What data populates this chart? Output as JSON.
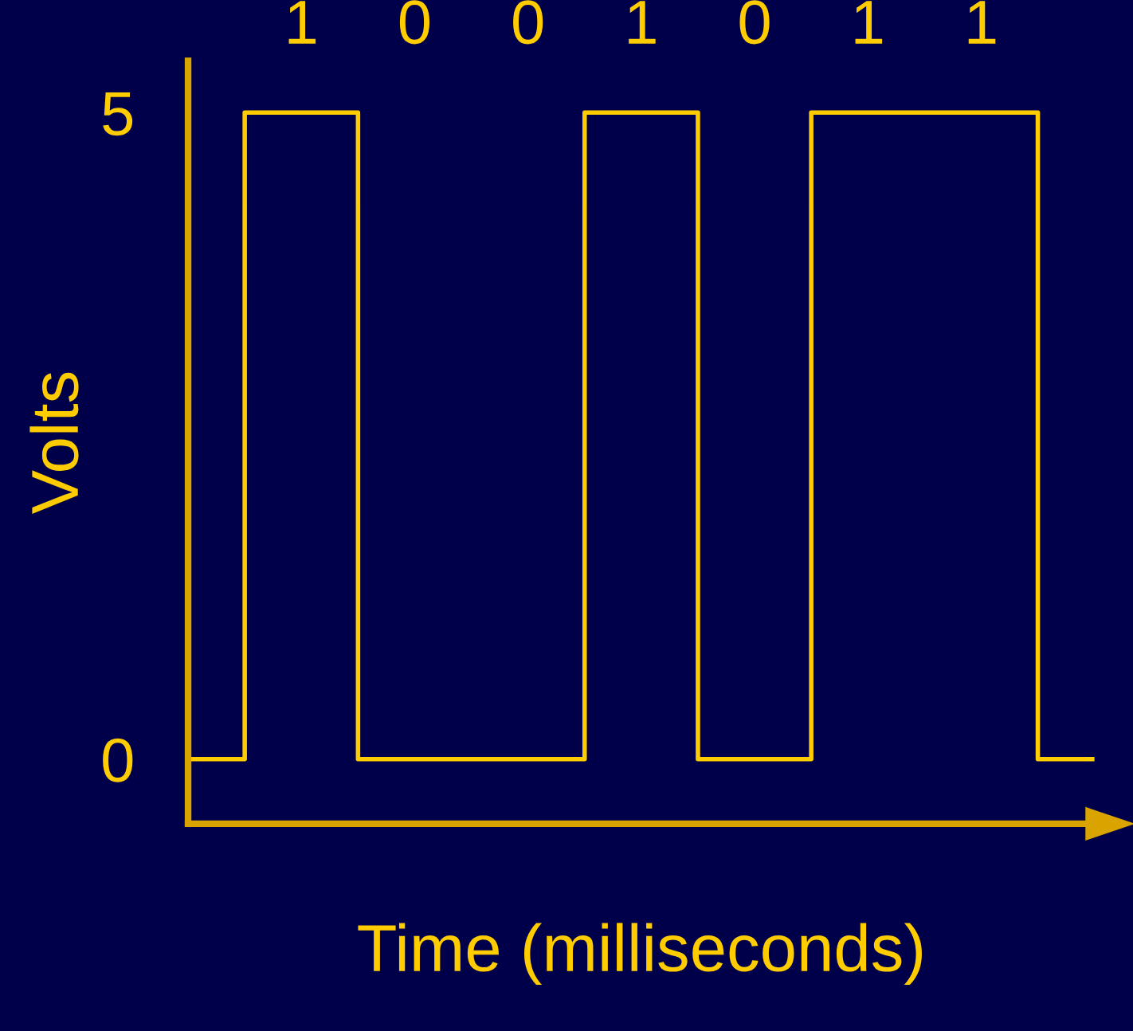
{
  "chart_data": {
    "type": "step",
    "categories": [
      null,
      "1",
      "0",
      "0",
      "1",
      "0",
      "1",
      "1",
      null
    ],
    "values": [
      0,
      5,
      0,
      0,
      5,
      0,
      5,
      5,
      0
    ],
    "color": "#ffcc00",
    "ylim": [
      -0.5,
      5.4
    ],
    "yticks": [
      0,
      5
    ],
    "xlabel": "Time (milliseconds)",
    "ylabel": "Volts"
  }
}
